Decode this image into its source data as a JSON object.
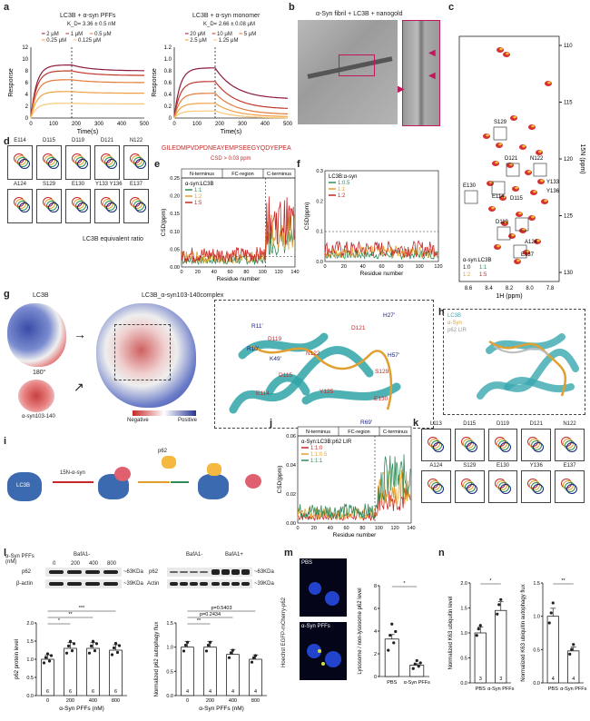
{
  "panel_letters": [
    "a",
    "b",
    "c",
    "d",
    "e",
    "f",
    "g",
    "h",
    "i",
    "j",
    "k",
    "l",
    "m",
    "n"
  ],
  "panel_a": {
    "left": {
      "title": "LC3B + α-syn PFFs",
      "kd": "K_D= 3.36 ± 0.5 nM",
      "legend": [
        "2 μM",
        "1 μM",
        "0.5 μM",
        "0.25 μM",
        "0.125 μM"
      ],
      "ylabel": "Response",
      "xlabel": "Time(s)",
      "yticks": [
        "0",
        "2",
        "4",
        "6",
        "8",
        "10",
        "12"
      ],
      "xticks": [
        "0",
        "100",
        "200",
        "300",
        "400",
        "500"
      ]
    },
    "right": {
      "title": "LC3B + α-syn monomer",
      "kd": "K_D= 2.66 ± 0.08 μM",
      "legend": [
        "20 μM",
        "10 μM",
        "5 μM",
        "2.5 μM",
        "1.25 μM"
      ],
      "ylabel": "Response",
      "xlabel": "Time(s)",
      "yticks": [
        "0",
        "0.2",
        "0.4",
        "0.6",
        "0.8",
        "1.0",
        "1.2"
      ],
      "xticks": [
        "0",
        "100",
        "200",
        "300",
        "400",
        "500"
      ]
    }
  },
  "panel_b": {
    "title": "α-Syn fibril + LC3B + nanogold"
  },
  "panel_c": {
    "xlabel": "1H (ppm)",
    "ylabel": "15N (ppm)",
    "yticks": [
      "110",
      "115",
      "120",
      "125",
      "130"
    ],
    "xticks": [
      "8.6",
      "8.4",
      "8.2",
      "8.0",
      "7.8"
    ],
    "peaks": [
      "S129",
      "D121",
      "N122",
      "Y133",
      "Y136",
      "E130",
      "E114",
      "D115",
      "D119",
      "A124",
      "E137"
    ],
    "legend_title": "α-syn:LC3B",
    "legend": [
      "1:0",
      "1:1",
      "1:2",
      "1:5"
    ]
  },
  "panel_d": {
    "residues_top": [
      "E114",
      "D115",
      "D119",
      "D121",
      "N122"
    ],
    "residues_bottom": [
      "A124",
      "S129",
      "E130",
      "Y133 Y136",
      "E137"
    ],
    "caption": "LC3B equivalent ratio"
  },
  "panel_e": {
    "sequence": "GILEDMPVDPDNEAYEMPSEEGYQDYEPEA",
    "threshold": "CSD > 0.03 ppm",
    "regions": [
      "N-terminus",
      "FC-region",
      "C-terminus"
    ],
    "legend_title": "α-syn:LC3B",
    "legend": [
      "1:1",
      "1:2",
      "1:5"
    ],
    "ylabel": "CSD(ppm)",
    "xlabel": "Residue number",
    "yticks": [
      "0.00",
      "0.05",
      "0.10",
      "0.15",
      "0.20",
      "0.25"
    ],
    "xticks": [
      "0",
      "20",
      "40",
      "60",
      "80",
      "100",
      "120",
      "140"
    ]
  },
  "panel_f": {
    "legend_title": "LC3B:α-syn",
    "legend": [
      "1:0.5",
      "1:1",
      "1:2"
    ],
    "ylabel": "CSD(ppm)",
    "xlabel": "Residue number",
    "yticks": [
      "0.0",
      "0.1",
      "0.2",
      "0.3"
    ],
    "xticks": [
      "0",
      "20",
      "40",
      "60",
      "80",
      "100",
      "120"
    ]
  },
  "panel_g": {
    "lc3b": "LC3B",
    "complex": "LC3B_α-syn103-140complex",
    "asyn": "α-syn103-140",
    "rotation": "180°",
    "scale": [
      "Negative",
      "Positive"
    ],
    "residues": [
      "H27'",
      "R11'",
      "D121",
      "D119",
      "R10'",
      "N122",
      "K49'",
      "H57'",
      "D115",
      "S129",
      "E114",
      "Y125",
      "E130",
      "R69'"
    ]
  },
  "panel_h": {
    "legend": [
      "LC3B",
      "α-Syn",
      "p62 LIR"
    ]
  },
  "panel_i": {
    "labels": [
      "LC3B",
      "15N-α-syn",
      "p62"
    ]
  },
  "panel_j": {
    "regions": [
      "N-terminus",
      "FC-region",
      "C-terminus"
    ],
    "legend_title": "α-Syn:LC3B:p62 LIR",
    "legend": [
      "1:1:0",
      "1:1:0.5",
      "1:1:1"
    ],
    "ylabel": "CSD(ppm)",
    "xlabel": "Residue number",
    "yticks": [
      "0.00",
      "0.02",
      "0.04",
      "0.06"
    ],
    "xticks": [
      "0",
      "20",
      "40",
      "60",
      "80",
      "100",
      "120",
      "140"
    ]
  },
  "panel_k": {
    "residues_top": [
      "L113",
      "D115",
      "D119",
      "D121",
      "N122"
    ],
    "residues_bottom": [
      "A124",
      "S129",
      "E130",
      "Y136",
      "E137"
    ]
  },
  "panel_l": {
    "left_blot": {
      "treatment": "α-Syn PFFs (nM)",
      "condition": "BafA1-",
      "lanes": [
        "0",
        "200",
        "400",
        "800"
      ],
      "rows": [
        "p62",
        "β-actin"
      ],
      "markers": [
        "~63KDa",
        "~39KDa"
      ]
    },
    "right_blot": {
      "conditions": [
        "BafA1-",
        "BafA1+"
      ],
      "lanes": [
        "0",
        "200",
        "400",
        "800",
        "0",
        "200",
        "400",
        "800"
      ],
      "rows": [
        "p62",
        "Actin"
      ],
      "markers": [
        "~63KDa",
        "~39KDa"
      ]
    },
    "left_chart": {
      "ylabel": "p62 protein level",
      "xlabel": "α-Syn PFFs (nM)",
      "categories": [
        "0",
        "200",
        "400",
        "800"
      ],
      "n": [
        "6",
        "6",
        "6",
        "6"
      ],
      "sig": [
        "*",
        "**",
        "***"
      ],
      "yticks": [
        "0.0",
        "0.5",
        "1.0",
        "1.5",
        "2.0"
      ]
    },
    "right_chart": {
      "ylabel": "Normalized p62 autophagy flux",
      "xlabel": "α-Syn PFFs (nM)",
      "categories": [
        "0",
        "200",
        "400",
        "800"
      ],
      "n": [
        "4",
        "4",
        "4",
        "4"
      ],
      "sig": [
        "**",
        "p=0.2434",
        "p=0.5403"
      ],
      "yticks": [
        "0.0",
        "0.5",
        "1.0",
        "1.5"
      ]
    }
  },
  "panel_m": {
    "images": [
      "PBS",
      "α-Syn PFFs"
    ],
    "stain": "Hoechst EGFP-mCherry-p62",
    "ylabel": "Lysosome / non-lysosome p62 level",
    "categories": [
      "PBS",
      "α-Syn PFFs"
    ],
    "sig": "*",
    "yticks": [
      "0",
      "2",
      "4",
      "6",
      "8"
    ]
  },
  "panel_n": {
    "left": {
      "ylabel": "Normalized K63 ubiquitin level",
      "categories": [
        "PBS",
        "α-Syn PFFs"
      ],
      "n": [
        "3",
        "3"
      ],
      "sig": "*",
      "yticks": [
        "0.0",
        "0.5",
        "1.0",
        "1.5",
        "2.0"
      ]
    },
    "right": {
      "ylabel": "Normalized K63 ubiquitin autophagy flux",
      "categories": [
        "PBS",
        "α-Syn PFFs"
      ],
      "n": [
        "4",
        "4"
      ],
      "sig": "**",
      "yticks": [
        "0.0",
        "0.5",
        "1.0",
        "1.5"
      ]
    }
  },
  "chart_data": [
    {
      "type": "line",
      "title": "LC3B + α-syn PFFs",
      "xlabel": "Time(s)",
      "ylabel": "Response",
      "xlim": [
        0,
        500
      ],
      "ylim": [
        0,
        12
      ],
      "series": [
        {
          "name": "2 μM",
          "color": "#8b1a3a",
          "assoc_plateau": 9.0,
          "dissoc_end": 8.0
        },
        {
          "name": "1 μM",
          "color": "#c0392b",
          "assoc_plateau": 8.0,
          "dissoc_end": 7.2
        },
        {
          "name": "0.5 μM",
          "color": "#e07a3a",
          "assoc_plateau": 6.5,
          "dissoc_end": 6.0
        },
        {
          "name": "0.25 μM",
          "color": "#f0a040",
          "assoc_plateau": 4.5,
          "dissoc_end": 4.2
        },
        {
          "name": "0.125 μM",
          "color": "#f5c878",
          "assoc_plateau": 2.5,
          "dissoc_end": 2.4
        }
      ],
      "injection_end": 180
    },
    {
      "type": "line",
      "title": "LC3B + α-syn monomer",
      "xlabel": "Time(s)",
      "ylabel": "Response",
      "xlim": [
        0,
        500
      ],
      "ylim": [
        0,
        1.2
      ],
      "series": [
        {
          "name": "20 μM",
          "color": "#8b1a3a",
          "assoc_plateau": 0.85,
          "dissoc_end": 0.32
        },
        {
          "name": "10 μM",
          "color": "#c0392b",
          "assoc_plateau": 0.62,
          "dissoc_end": 0.15
        },
        {
          "name": "5 μM",
          "color": "#e07a3a",
          "assoc_plateau": 0.42,
          "dissoc_end": 0.06
        },
        {
          "name": "2.5 μM",
          "color": "#f0a040",
          "assoc_plateau": 0.25,
          "dissoc_end": 0.02
        },
        {
          "name": "1.25 μM",
          "color": "#f5c878",
          "assoc_plateau": 0.12,
          "dissoc_end": 0.0
        }
      ],
      "injection_end": 180
    },
    {
      "type": "bar",
      "title": "",
      "ylabel": "p62 protein level",
      "xlabel": "α-Syn PFFs (nM)",
      "categories": [
        "0",
        "200",
        "400",
        "800"
      ],
      "values": [
        1.0,
        1.3,
        1.3,
        1.25
      ],
      "ylim": [
        0,
        2
      ]
    },
    {
      "type": "bar",
      "title": "",
      "ylabel": "Normalized p62 autophagy flux",
      "xlabel": "α-Syn PFFs (nM)",
      "categories": [
        "0",
        "200",
        "400",
        "800"
      ],
      "values": [
        1.0,
        1.0,
        0.85,
        0.75
      ],
      "ylim": [
        0,
        1.5
      ]
    },
    {
      "type": "bar",
      "title": "",
      "ylabel": "Lysosome / non-lysosome p62 level",
      "categories": [
        "PBS",
        "α-Syn PFFs"
      ],
      "values": [
        3.3,
        1.0
      ],
      "ylim": [
        0,
        8
      ]
    },
    {
      "type": "bar",
      "title": "",
      "ylabel": "Normalized K63 ubiquitin level",
      "categories": [
        "PBS",
        "α-Syn PFFs"
      ],
      "values": [
        1.0,
        1.45
      ],
      "ylim": [
        0,
        2
      ]
    },
    {
      "type": "bar",
      "title": "",
      "ylabel": "Normalized K63 ubiquitin autophagy flux",
      "categories": [
        "PBS",
        "α-Syn PFFs"
      ],
      "values": [
        1.0,
        0.48
      ],
      "ylim": [
        0,
        1.5
      ]
    }
  ]
}
